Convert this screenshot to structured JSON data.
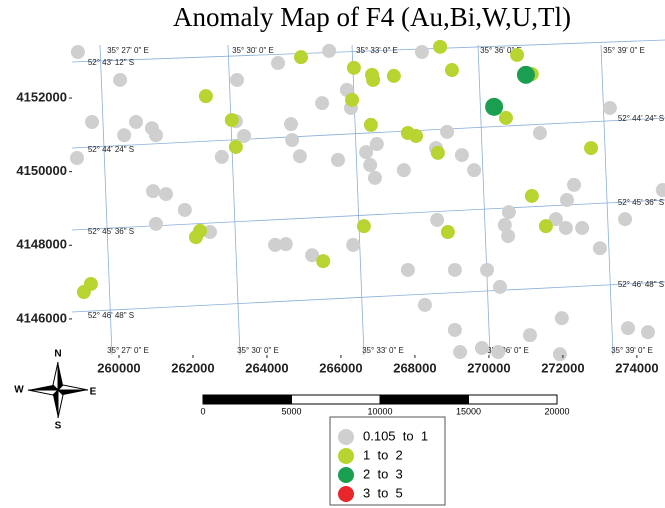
{
  "chart_data": {
    "type": "scatter",
    "title": "Anomaly Map of F4 (Au,Bi,W,U,Tl)",
    "xlim": [
      258730,
      274760
    ],
    "ylim": [
      4145020,
      4153440
    ],
    "xticks": [
      260000,
      262000,
      264000,
      266000,
      268000,
      270000,
      272000,
      274000
    ],
    "yticks": [
      4146000,
      4148000,
      4150000,
      4152000
    ],
    "series": [
      {
        "name": "0.105  to  1",
        "color": "#cfcfcf",
        "x": [
          258890,
          258865,
          259270,
          260030,
          260140,
          260460,
          260890,
          261000,
          260920,
          261270,
          261000,
          261780,
          262460,
          262780,
          263190,
          263160,
          263380,
          264300,
          264650,
          264680,
          264890,
          264220,
          264510,
          265220,
          265490,
          265680,
          265920,
          266160,
          266270,
          266330,
          266680,
          266790,
          266920,
          266970,
          267700,
          267810,
          268190,
          268270,
          268570,
          268870,
          269080,
          268600,
          269270,
          269600,
          269080,
          269220,
          269950,
          270300,
          269810,
          270250,
          270430,
          270520,
          270540,
          271110,
          271380,
          271810,
          272110,
          272300,
          272080,
          272520,
          271970,
          271920,
          273000,
          273270,
          273680,
          273760,
          274300,
          274700
        ],
        "y": [
          4153250,
          4150370,
          4151350,
          4152490,
          4150990,
          4151350,
          4151180,
          4150990,
          4149470,
          4149390,
          4148580,
          4148960,
          4148360,
          4150400,
          4152490,
          4151370,
          4150970,
          4152950,
          4151290,
          4150860,
          4150420,
          4148010,
          4148030,
          4147730,
          4151860,
          4153280,
          4150320,
          4152220,
          4151730,
          4148010,
          4150530,
          4150180,
          4149830,
          4150750,
          4150040,
          4147330,
          4153250,
          4146380,
          4150640,
          4151080,
          4147330,
          4148690,
          4150450,
          4150040,
          4145700,
          4145100,
          4147330,
          4146870,
          4145210,
          4145100,
          4148550,
          4148250,
          4148900,
          4145560,
          4151050,
          4148710,
          4149230,
          4149640,
          4148470,
          4148470,
          4146020,
          4145040,
          4147920,
          4151730,
          4148710,
          4145750,
          4145640,
          4149500
        ]
      },
      {
        "name": "1  to  2",
        "color": "#b7d431",
        "x": [
          259050,
          259240,
          262080,
          262190,
          262350,
          263050,
          263160,
          264920,
          265520,
          266350,
          266300,
          266840,
          266870,
          266810,
          266620,
          267430,
          267810,
          268030,
          268620,
          268680,
          269000,
          268890,
          270460,
          271160,
          271160,
          271540,
          272760,
          270760
        ],
        "y": [
          4146730,
          4146950,
          4148220,
          4148390,
          4152050,
          4151400,
          4150670,
          4153110,
          4147570,
          4152820,
          4151950,
          4152630,
          4152490,
          4151270,
          4148520,
          4152600,
          4151050,
          4150970,
          4150510,
          4153390,
          4152760,
          4148360,
          4151460,
          4152650,
          4149340,
          4148520,
          4150640,
          4153170
        ]
      },
      {
        "name": "2  to  3",
        "color": "#1a9e4f",
        "x": [
          270140,
          271000
        ],
        "y": [
          4151760,
          4152630
        ]
      },
      {
        "name": "3  to  5",
        "color": "#e8272a",
        "x": [],
        "y": []
      }
    ],
    "graticule": {
      "top": [
        "35° 27' 0\" E",
        "35° 30' 0\" E",
        "35° 33' 0\" E",
        "35° 36' 0\" E",
        "35° 39' 0\" E"
      ],
      "bottom": [
        "35° 27' 0\" E",
        "35° 30' 0\" E",
        "35° 33' 0\" E",
        "35° 36' 0\" E",
        "35° 39' 0\" E"
      ],
      "left": [
        "52° 43' 12\" S",
        "52° 44' 24\" S",
        "52° 45' 36\" S",
        "52° 46' 48\" S"
      ],
      "right": [
        "52° 44' 24\" S",
        "52° 45' 36\" S",
        "52° 46' 48\" S"
      ]
    },
    "scale_bar": [
      0,
      5000,
      10000,
      15000,
      20000
    ],
    "compass": {
      "n": "N",
      "e": "E",
      "s": "S",
      "w": "W"
    }
  }
}
